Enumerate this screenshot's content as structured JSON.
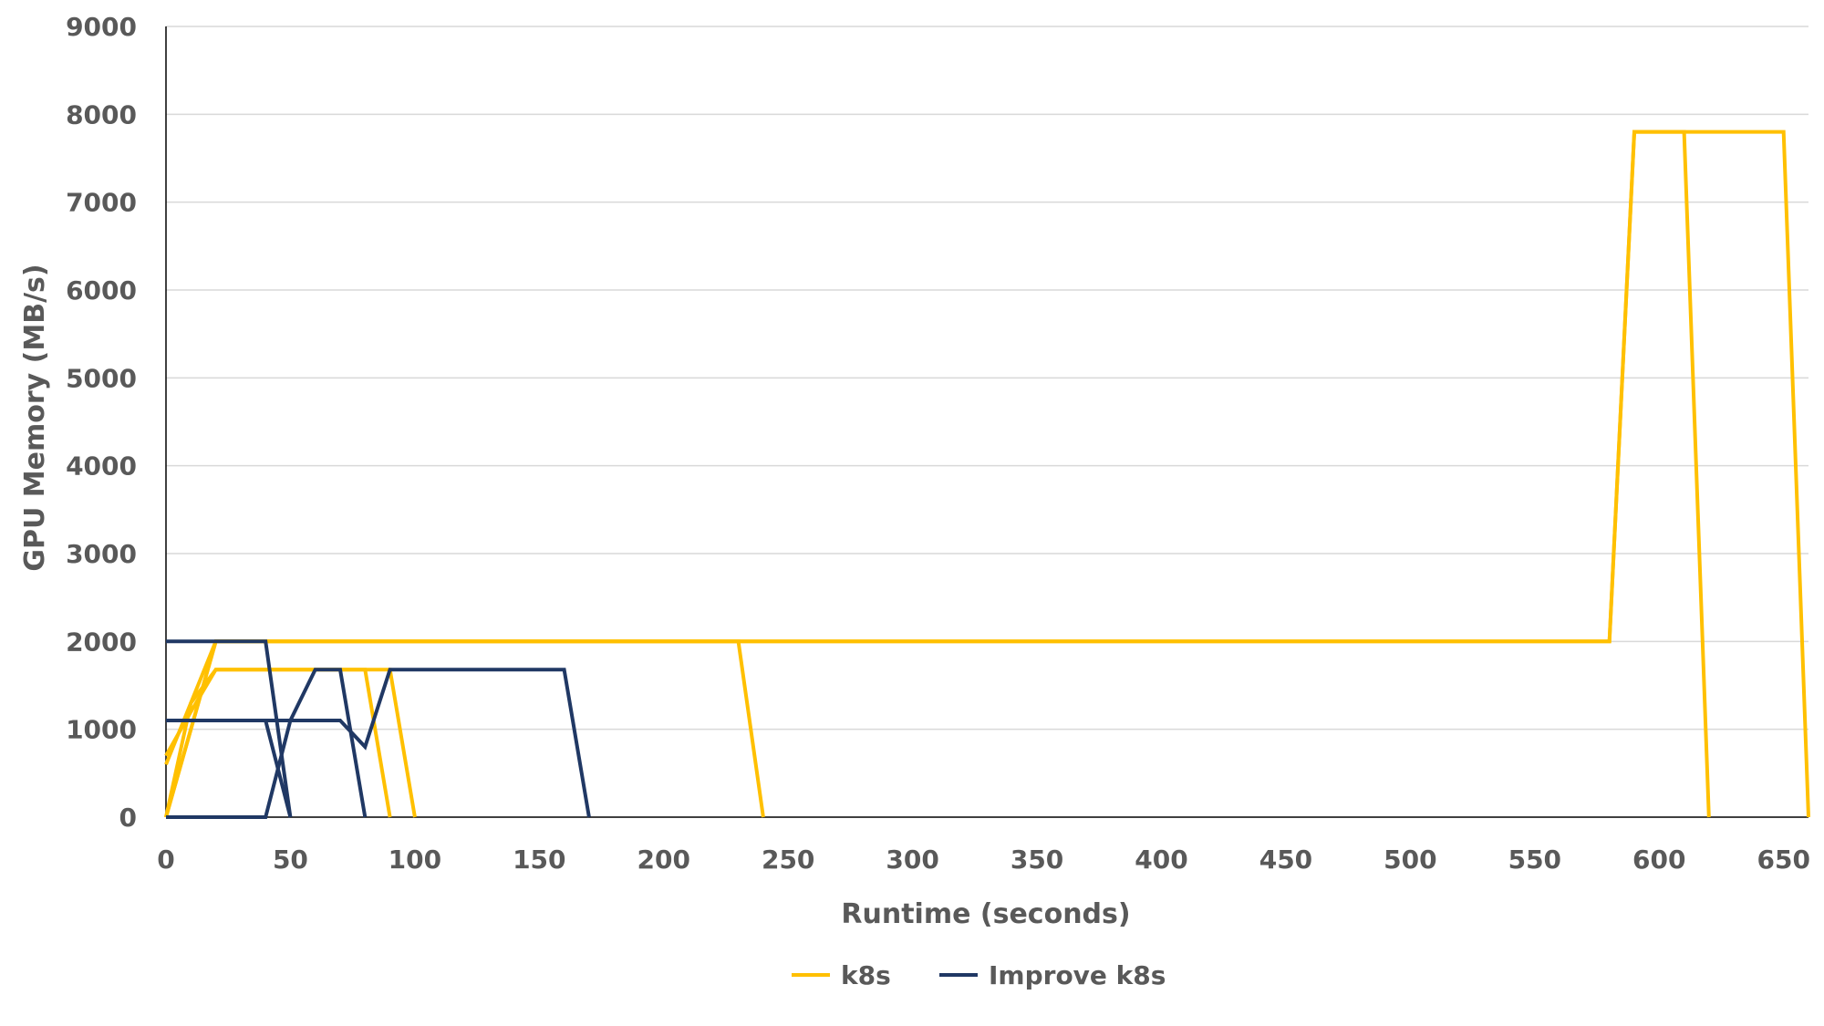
{
  "chart_data": {
    "type": "line",
    "title": "",
    "xlabel": "Runtime (seconds)",
    "ylabel": "GPU Memory (MB/s)",
    "xlim": [
      0,
      660
    ],
    "ylim": [
      0,
      9000
    ],
    "x_ticks": [
      0,
      50,
      100,
      150,
      200,
      250,
      300,
      350,
      400,
      450,
      500,
      550,
      600,
      650
    ],
    "y_ticks": [
      0,
      1000,
      2000,
      3000,
      4000,
      5000,
      6000,
      7000,
      8000,
      9000
    ],
    "x_tick_labels": [
      "0",
      "50",
      "100",
      "150",
      "200",
      "250",
      "300",
      "350",
      "400",
      "450",
      "500",
      "550",
      "600",
      "650"
    ],
    "y_tick_labels": [
      "0",
      "1000",
      "2000",
      "3000",
      "4000",
      "5000",
      "6000",
      "7000",
      "8000",
      "9000"
    ],
    "grid": true,
    "legend_position": "bottom",
    "series": [
      {
        "name": "k8s",
        "legend_label": "k8s",
        "color": "#FFC000",
        "runs": [
          {
            "points": [
              [
                0,
                600
              ],
              [
                20,
                2000
              ],
              [
                230,
                2000
              ],
              [
                240,
                0
              ]
            ]
          },
          {
            "points": [
              [
                0,
                0
              ],
              [
                10,
                1300
              ],
              [
                20,
                1680
              ],
              [
                80,
                1680
              ],
              [
                90,
                0
              ]
            ]
          },
          {
            "points": [
              [
                0,
                700
              ],
              [
                10,
                1200
              ],
              [
                20,
                1680
              ],
              [
                90,
                1680
              ],
              [
                100,
                0
              ]
            ]
          },
          {
            "points": [
              [
                0,
                0
              ],
              [
                20,
                2000
              ],
              [
                580,
                2000
              ],
              [
                590,
                7800
              ],
              [
                610,
                7800
              ],
              [
                620,
                0
              ]
            ]
          },
          {
            "points": [
              [
                0,
                0
              ],
              [
                20,
                2000
              ],
              [
                580,
                2000
              ],
              [
                590,
                7800
              ],
              [
                650,
                7800
              ],
              [
                660,
                0
              ]
            ]
          }
        ]
      },
      {
        "name": "Improve k8s",
        "legend_label": "Improve k8s",
        "color": "#203864",
        "runs": [
          {
            "points": [
              [
                0,
                2000
              ],
              [
                40,
                2000
              ],
              [
                50,
                0
              ]
            ]
          },
          {
            "points": [
              [
                0,
                1100
              ],
              [
                40,
                1100
              ],
              [
                50,
                0
              ]
            ]
          },
          {
            "points": [
              [
                0,
                0
              ],
              [
                40,
                0
              ],
              [
                50,
                1100
              ],
              [
                60,
                1680
              ],
              [
                70,
                1680
              ],
              [
                80,
                0
              ]
            ]
          },
          {
            "points": [
              [
                0,
                1100
              ],
              [
                70,
                1100
              ],
              [
                80,
                800
              ],
              [
                90,
                1680
              ],
              [
                160,
                1680
              ],
              [
                170,
                0
              ]
            ]
          }
        ]
      }
    ]
  }
}
